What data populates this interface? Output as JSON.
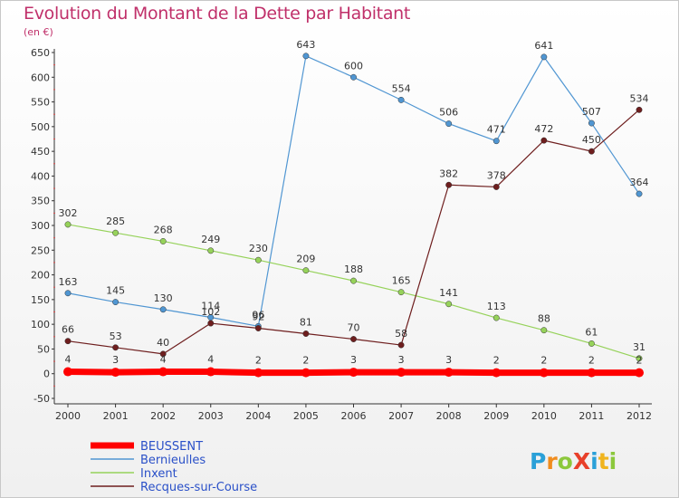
{
  "chart_data": {
    "type": "line",
    "title": "Evolution du Montant de la Dette par Habitant",
    "subtitle": "(en €)",
    "x": [
      "2000",
      "2001",
      "2002",
      "2003",
      "2004",
      "2005",
      "2006",
      "2007",
      "2008",
      "2009",
      "2010",
      "2011",
      "2012"
    ],
    "ylim": [
      -50,
      650
    ],
    "yticks": [
      -50,
      0,
      50,
      100,
      150,
      200,
      250,
      300,
      350,
      400,
      450,
      500,
      550,
      600,
      650
    ],
    "grid": false,
    "legend_position": "bottom-left",
    "series": [
      {
        "name": "BEUSSENT",
        "color": "#ff0000",
        "values": [
          4,
          3,
          4,
          4,
          2,
          2,
          3,
          3,
          3,
          2,
          2,
          2,
          2
        ],
        "labels": [
          "4",
          "3",
          "4",
          "4",
          "2",
          "2",
          "3",
          "3",
          "3",
          "2",
          "2",
          "2",
          "2"
        ]
      },
      {
        "name": "Bernieulles",
        "color": "#5096d2",
        "values": [
          163,
          145,
          130,
          114,
          96,
          643,
          600,
          554,
          506,
          471,
          641,
          507,
          364
        ],
        "labels": [
          "163",
          "145",
          "130",
          "114",
          "96",
          "643",
          "600",
          "554",
          "506",
          "471",
          "641",
          "507",
          "364"
        ]
      },
      {
        "name": "Inxent",
        "color": "#96d25a",
        "values": [
          302,
          285,
          268,
          249,
          230,
          209,
          188,
          165,
          141,
          113,
          88,
          61,
          31
        ],
        "labels": [
          "302",
          "285",
          "268",
          "249",
          "230",
          "209",
          "188",
          "165",
          "141",
          "113",
          "88",
          "61",
          "31"
        ]
      },
      {
        "name": "Recques-sur-Course",
        "color": "#6e1e1e",
        "values": [
          66,
          53,
          40,
          102,
          92,
          81,
          70,
          58,
          382,
          378,
          472,
          450,
          534
        ],
        "labels": [
          "66",
          "53",
          "40",
          "102",
          "92",
          "81",
          "70",
          "58",
          "382",
          "378",
          "472",
          "450",
          "534"
        ]
      }
    ]
  },
  "brand": {
    "logo_text": "Proxiti"
  }
}
